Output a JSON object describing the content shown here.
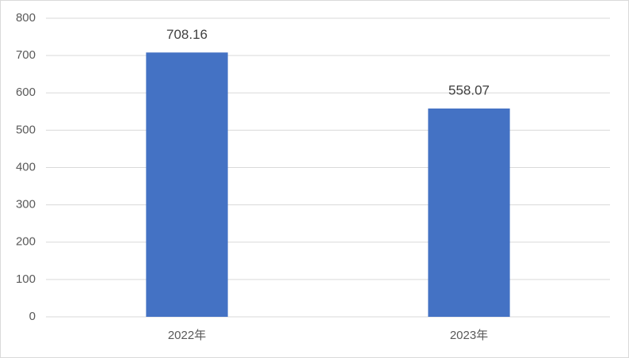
{
  "chart_data": {
    "type": "bar",
    "categories": [
      "2022年",
      "2023年"
    ],
    "values": [
      708.16,
      558.07
    ],
    "color": "#4472c4",
    "ylim": [
      0,
      800
    ],
    "yticks": [
      0,
      100,
      200,
      300,
      400,
      500,
      600,
      700,
      800
    ],
    "grid": true
  }
}
